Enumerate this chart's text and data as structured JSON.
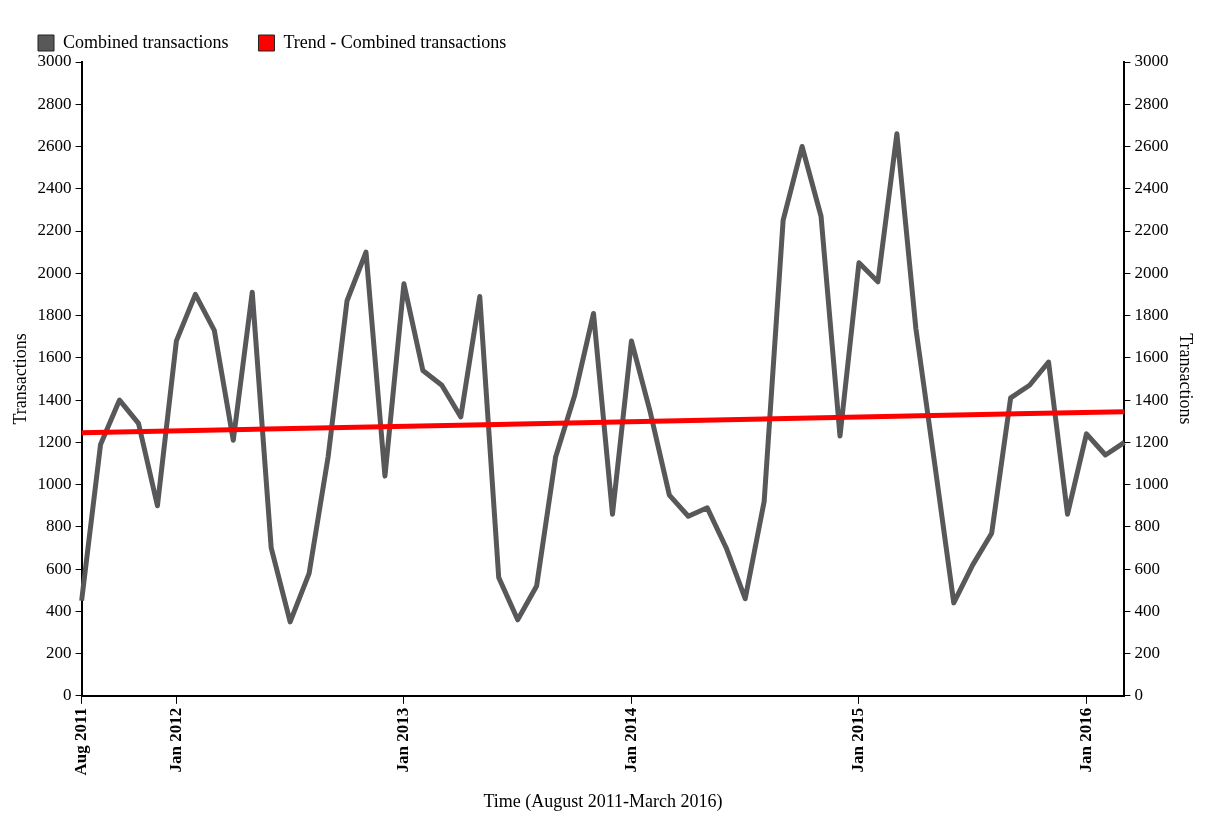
{
  "chart_data": {
    "type": "line",
    "xlabel": "Time (August 2011-March 2016)",
    "ylabel": "Transactions",
    "y2label": "Transactions",
    "categories": [
      "Aug 2011",
      null,
      null,
      null,
      null,
      "Jan 2012",
      null,
      null,
      null,
      null,
      null,
      null,
      null,
      null,
      null,
      null,
      null,
      "Jan 2013",
      null,
      null,
      null,
      null,
      null,
      null,
      null,
      null,
      null,
      null,
      null,
      "Jan 2014",
      null,
      null,
      null,
      null,
      null,
      null,
      null,
      null,
      null,
      null,
      null,
      "Jan 2015",
      null,
      null,
      null,
      null,
      null,
      null,
      null,
      null,
      null,
      null,
      null,
      "Jan 2016",
      null,
      null
    ],
    "series": [
      {
        "name": "Combined transactions",
        "color": "#58585a",
        "values": [
          450,
          1190,
          1400,
          1290,
          900,
          1680,
          1900,
          1730,
          1210,
          1910,
          700,
          350,
          580,
          1130,
          1870,
          2100,
          1040,
          1950,
          1540,
          1470,
          1320,
          1890,
          560,
          360,
          520,
          1130,
          1420,
          1810,
          860,
          1680,
          1340,
          950,
          850,
          890,
          700,
          460,
          920,
          2250,
          2600,
          2270,
          1230,
          2050,
          1960,
          2660,
          1740,
          1095,
          440,
          620,
          770,
          1410,
          1470,
          1580,
          860,
          1240,
          1140,
          1200
        ]
      },
      {
        "name": "Trend - Combined transactions",
        "color": "#ff0000",
        "values": [
          1245,
          null,
          null,
          null,
          null,
          null,
          null,
          null,
          null,
          null,
          null,
          null,
          null,
          null,
          null,
          null,
          null,
          null,
          null,
          null,
          null,
          null,
          null,
          null,
          null,
          null,
          null,
          null,
          null,
          null,
          null,
          null,
          null,
          null,
          null,
          null,
          null,
          null,
          null,
          null,
          null,
          null,
          null,
          null,
          null,
          null,
          null,
          null,
          null,
          null,
          null,
          null,
          null,
          null,
          null,
          1345
        ]
      }
    ],
    "ylim": [
      0,
      3000
    ],
    "yticks": [
      0,
      200,
      400,
      600,
      800,
      1000,
      1200,
      1400,
      1600,
      1800,
      2000,
      2200,
      2400,
      2600,
      2800,
      3000
    ],
    "y2lim": [
      0,
      3000
    ],
    "y2ticks": [
      0,
      200,
      400,
      600,
      800,
      1000,
      1200,
      1400,
      1600,
      1800,
      2000,
      2200,
      2400,
      2600,
      2800,
      3000
    ],
    "grid": false,
    "legend": "top left",
    "marker": "none",
    "line_style": "solid"
  }
}
